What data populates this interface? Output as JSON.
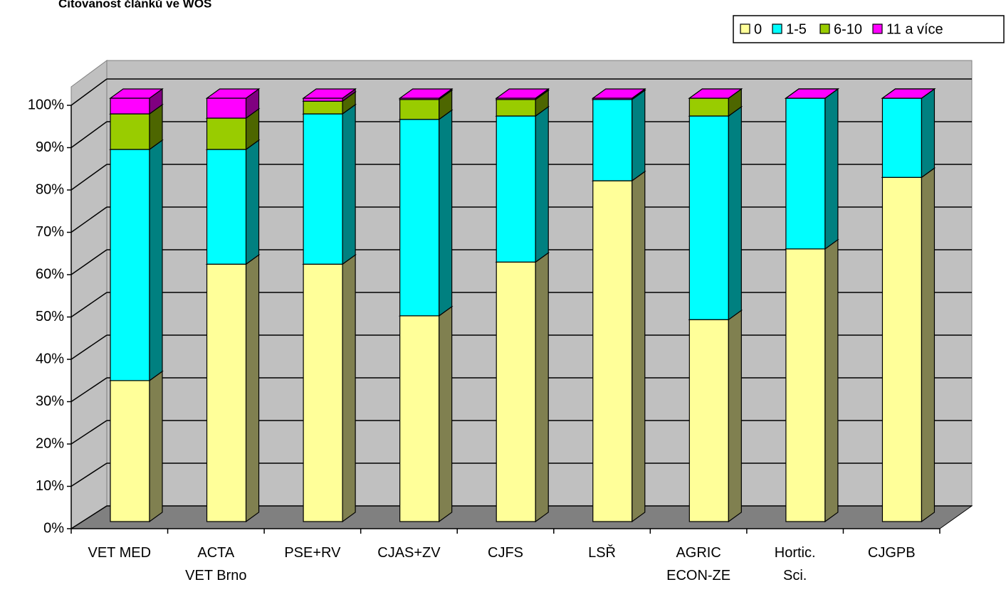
{
  "chart_data": {
    "type": "bar3d_stacked",
    "title": "Citovanost článků ve WOS",
    "categories": [
      [
        "VET MED"
      ],
      [
        "ACTA",
        "VET Brno"
      ],
      [
        "PSE+RV"
      ],
      [
        "CJAS+ZV"
      ],
      [
        "CJFS"
      ],
      [
        "LSŘ"
      ],
      [
        "AGRIC",
        "ECON-ZE"
      ],
      [
        "Hortic.",
        "Sci."
      ],
      [
        "CJGPB"
      ]
    ],
    "series": [
      {
        "name": "0",
        "color": "#ffff99",
        "side": "#808050",
        "values": [
          33.3,
          60.8,
          60.8,
          48.6,
          61.3,
          80.5,
          47.7,
          64.4,
          81.3
        ]
      },
      {
        "name": "1-5",
        "color": "#00ffff",
        "side": "#008080",
        "values": [
          54.6,
          27.1,
          35.5,
          46.4,
          34.5,
          19.2,
          48.1,
          35.6,
          18.7
        ]
      },
      {
        "name": "6-10",
        "color": "#99cc00",
        "side": "#4d6600",
        "values": [
          8.4,
          7.4,
          3.0,
          4.7,
          3.9,
          0,
          4.2,
          0,
          0
        ]
      },
      {
        "name": "11 a více",
        "color": "#ff00ff",
        "side": "#800080",
        "values": [
          3.7,
          4.7,
          0.7,
          0.3,
          0.3,
          0.3,
          0,
          0,
          0
        ]
      }
    ],
    "ylim": [
      0,
      100
    ],
    "yticks": [
      {
        "value": 0,
        "label": "0%"
      },
      {
        "value": 10,
        "label": "10%"
      },
      {
        "value": 20,
        "label": "20%"
      },
      {
        "value": 30,
        "label": "30%"
      },
      {
        "value": 40,
        "label": "40%"
      },
      {
        "value": 50,
        "label": "50%"
      },
      {
        "value": 60,
        "label": "60%"
      },
      {
        "value": 70,
        "label": "70%"
      },
      {
        "value": 80,
        "label": "80%"
      },
      {
        "value": 90,
        "label": "90%"
      },
      {
        "value": 100,
        "label": "100%"
      }
    ],
    "grid": true,
    "legend": "top-right"
  }
}
